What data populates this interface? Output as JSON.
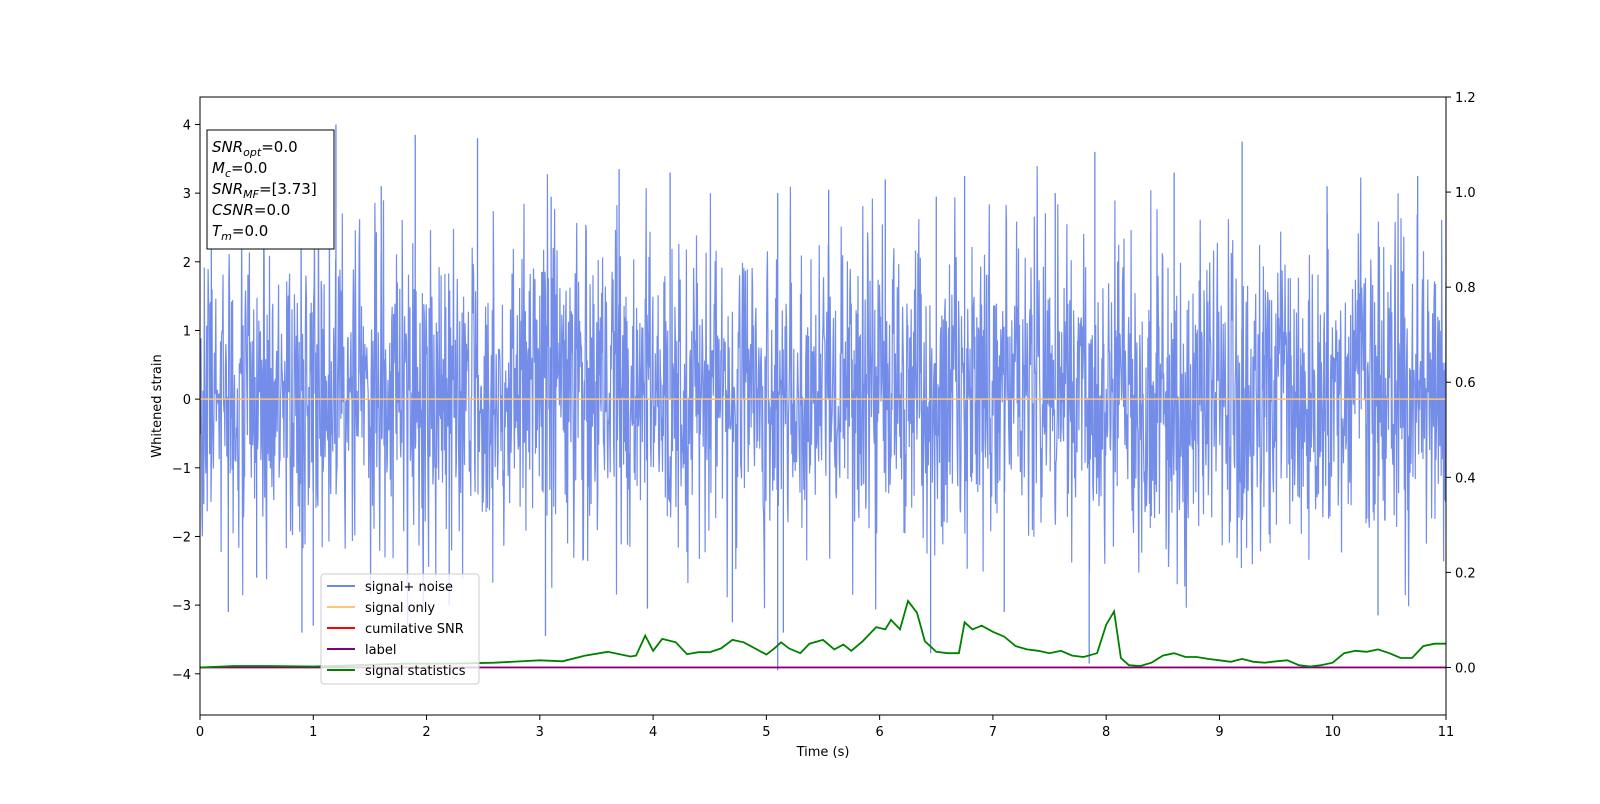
{
  "chart_data": {
    "type": "line",
    "title": "",
    "xlabel": "Time (s)",
    "ylabel": "Whitened strain",
    "xlim": [
      0,
      11
    ],
    "ylim_left": [
      -4.6,
      4.4
    ],
    "ylim_right": [
      -0.1,
      1.2
    ],
    "x_ticks": [
      "0",
      "1",
      "2",
      "3",
      "4",
      "5",
      "6",
      "7",
      "8",
      "9",
      "10",
      "11"
    ],
    "y_ticks_left": [
      "−4",
      "−3",
      "−2",
      "−1",
      "0",
      "1",
      "2",
      "3",
      "4"
    ],
    "y_ticks_right": [
      "0.0",
      "0.2",
      "0.4",
      "0.6",
      "0.8",
      "1.0",
      "1.2"
    ],
    "grid": false,
    "legend_position": "lower-left",
    "info_box": {
      "lines": [
        {
          "main": "SNR",
          "sub": "opt",
          "rest": "=0.0"
        },
        {
          "main": "M",
          "sub": "c",
          "rest": "=0.0"
        },
        {
          "main": "SNR",
          "sub": "MF",
          "rest": "=[3.73]"
        },
        {
          "main": "CSNR",
          "sub": "",
          "rest": "=0.0"
        },
        {
          "main": "T",
          "sub": "m",
          "rest": "=0.0"
        }
      ]
    },
    "series": [
      {
        "name": "signal+ noise",
        "axis": "left",
        "color": "#6b87e8",
        "kind": "noise",
        "typical_range": [
          -2.0,
          2.2
        ],
        "spikes": [
          [
            0.1,
            2.9
          ],
          [
            0.25,
            -3.1
          ],
          [
            0.5,
            -2.6
          ],
          [
            0.9,
            -3.4
          ],
          [
            1.0,
            -3.3
          ],
          [
            1.2,
            4.0
          ],
          [
            1.6,
            3.1
          ],
          [
            1.9,
            3.85
          ],
          [
            2.2,
            -3.0
          ],
          [
            2.45,
            3.8
          ],
          [
            3.05,
            -3.45
          ],
          [
            3.1,
            2.95
          ],
          [
            3.7,
            3.35
          ],
          [
            3.95,
            -3.05
          ],
          [
            4.15,
            3.3
          ],
          [
            4.7,
            -3.25
          ],
          [
            5.1,
            -3.95
          ],
          [
            5.1,
            3.0
          ],
          [
            5.15,
            -3.4
          ],
          [
            5.55,
            3.05
          ],
          [
            6.05,
            3.2
          ],
          [
            6.45,
            -3.7
          ],
          [
            6.5,
            2.95
          ],
          [
            6.75,
            3.25
          ],
          [
            7.1,
            -3.1
          ],
          [
            7.55,
            3.0
          ],
          [
            7.85,
            -3.85
          ],
          [
            7.9,
            3.6
          ],
          [
            8.6,
            3.3
          ],
          [
            9.2,
            3.75
          ],
          [
            9.95,
            3.1
          ],
          [
            10.4,
            -3.15
          ],
          [
            10.75,
            3.25
          ]
        ]
      },
      {
        "name": "signal only",
        "axis": "left",
        "color": "#fcc679",
        "kind": "constant",
        "value": 0
      },
      {
        "name": "cumilative SNR",
        "axis": "right",
        "color": "#ff0000",
        "kind": "constant",
        "value": 0
      },
      {
        "name": "label",
        "axis": "right",
        "color": "#800080",
        "kind": "constant",
        "value": 0
      },
      {
        "name": "signal statistics",
        "axis": "right",
        "color": "#008000",
        "kind": "line",
        "x": [
          0,
          0.3,
          0.6,
          1.0,
          1.4,
          1.8,
          2.2,
          2.6,
          3.0,
          3.2,
          3.4,
          3.6,
          3.8,
          3.85,
          3.93,
          4.0,
          4.08,
          4.2,
          4.3,
          4.4,
          4.5,
          4.6,
          4.7,
          4.8,
          4.9,
          5.0,
          5.07,
          5.13,
          5.2,
          5.3,
          5.38,
          5.5,
          5.6,
          5.68,
          5.75,
          5.85,
          5.97,
          6.05,
          6.1,
          6.18,
          6.25,
          6.33,
          6.4,
          6.5,
          6.6,
          6.7,
          6.75,
          6.82,
          6.9,
          7.0,
          7.1,
          7.2,
          7.3,
          7.4,
          7.5,
          7.6,
          7.7,
          7.8,
          7.92,
          8.0,
          8.07,
          8.13,
          8.2,
          8.3,
          8.4,
          8.5,
          8.6,
          8.7,
          8.8,
          8.9,
          9.0,
          9.1,
          9.2,
          9.3,
          9.4,
          9.5,
          9.6,
          9.7,
          9.8,
          9.9,
          10.0,
          10.1,
          10.2,
          10.3,
          10.4,
          10.5,
          10.6,
          10.7,
          10.8,
          10.9,
          11.0
        ],
        "y": [
          0.0,
          0.003,
          0.003,
          0.002,
          0.005,
          0.008,
          0.008,
          0.01,
          0.015,
          0.013,
          0.025,
          0.033,
          0.023,
          0.025,
          0.067,
          0.035,
          0.06,
          0.053,
          0.028,
          0.032,
          0.032,
          0.04,
          0.058,
          0.053,
          0.04,
          0.027,
          0.04,
          0.053,
          0.04,
          0.03,
          0.05,
          0.058,
          0.038,
          0.048,
          0.035,
          0.055,
          0.085,
          0.08,
          0.1,
          0.08,
          0.14,
          0.115,
          0.055,
          0.033,
          0.03,
          0.03,
          0.095,
          0.08,
          0.088,
          0.075,
          0.065,
          0.045,
          0.038,
          0.035,
          0.03,
          0.035,
          0.025,
          0.022,
          0.03,
          0.09,
          0.118,
          0.02,
          0.005,
          0.003,
          0.01,
          0.025,
          0.03,
          0.022,
          0.022,
          0.018,
          0.015,
          0.012,
          0.018,
          0.012,
          0.01,
          0.013,
          0.015,
          0.005,
          0.002,
          0.005,
          0.01,
          0.03,
          0.035,
          0.033,
          0.038,
          0.03,
          0.02,
          0.02,
          0.045,
          0.05,
          0.05
        ]
      }
    ]
  }
}
